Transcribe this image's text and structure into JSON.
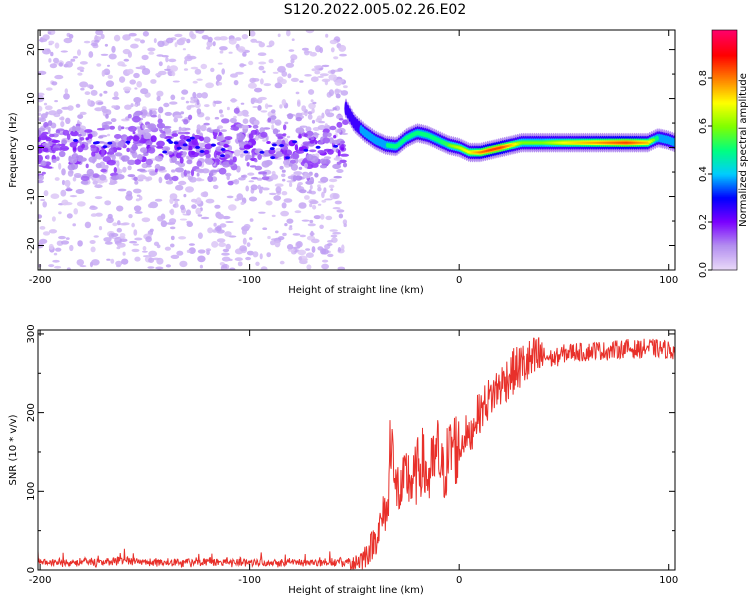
{
  "title": "S120.2022.005.02.26.E02",
  "chart_data": [
    {
      "type": "heatmap",
      "title": "",
      "xlabel": "Height of straight line (km)",
      "ylabel": "Frequency (Hz)",
      "xlim": [
        -201,
        103
      ],
      "ylim": [
        -25,
        24
      ],
      "xticks": [
        -200,
        -100,
        0,
        100
      ],
      "yticks": [
        -20,
        -10,
        0,
        10,
        20
      ],
      "colorbar": {
        "label": "Normalized spectral amplitude",
        "range": [
          0,
          1
        ],
        "ticks": [
          0.0,
          0.2,
          0.4,
          0.6,
          0.8
        ],
        "colors": [
          "#e8d8f8",
          "#b38ef0",
          "#7a00ff",
          "#0000ff",
          "#00ccff",
          "#00ff80",
          "#80ff00",
          "#ffff00",
          "#ff8000",
          "#ff0000",
          "#ff0066"
        ]
      },
      "noise_region": {
        "x_range": [
          -201,
          -54
        ],
        "freq_range": [
          -25,
          24
        ],
        "core_amplitude": 0.15
      },
      "signal_ridge": {
        "x": [
          -54,
          -50,
          -45,
          -40,
          -35,
          -30,
          -25,
          -20,
          -15,
          -10,
          -5,
          0,
          5,
          10,
          15,
          20,
          25,
          30,
          40,
          50,
          60,
          70,
          80,
          90,
          95,
          100,
          103
        ],
        "freq": [
          8,
          5,
          3,
          1.5,
          0.5,
          0.2,
          2,
          3,
          2.5,
          1.5,
          0.5,
          0,
          -1,
          -1,
          -0.5,
          0,
          0.5,
          1,
          1,
          1,
          1,
          1,
          1,
          1,
          2,
          1.5,
          1
        ],
        "amplitude": [
          0.35,
          0.35,
          0.4,
          0.45,
          0.5,
          0.5,
          0.55,
          0.55,
          0.55,
          0.55,
          0.6,
          0.65,
          0.7,
          0.8,
          0.85,
          0.85,
          0.75,
          0.6,
          0.6,
          0.7,
          0.75,
          0.8,
          0.85,
          0.75,
          0.5,
          0.45,
          0.4
        ]
      }
    },
    {
      "type": "line",
      "title": "",
      "xlabel": "Height of straight line (km)",
      "ylabel": "SNR (10 * v/v)",
      "xlim": [
        -201,
        103
      ],
      "ylim": [
        0,
        305
      ],
      "xticks": [
        -200,
        -100,
        0,
        100
      ],
      "yticks": [
        0,
        100,
        200,
        300
      ],
      "color": "#e8302a",
      "series": [
        {
          "x": [
            -201,
            -190,
            -180,
            -170,
            -160,
            -150,
            -140,
            -130,
            -120,
            -110,
            -100,
            -90,
            -80,
            -70,
            -60,
            -50,
            -46,
            -43,
            -40,
            -37,
            -35,
            -34,
            -33,
            -32,
            -31,
            -30,
            -28,
            -25,
            -22,
            -20,
            -18,
            -15,
            -12,
            -10,
            -8,
            -5,
            -3,
            0,
            3,
            5,
            8,
            10,
            12,
            15,
            18,
            20,
            25,
            30,
            35,
            40,
            45,
            50,
            55,
            60,
            65,
            70,
            75,
            80,
            85,
            90,
            95,
            100,
            103
          ],
          "y": [
            10,
            10,
            10,
            10,
            11,
            10,
            10,
            10,
            10,
            10,
            10,
            10,
            10,
            10,
            10,
            10,
            15,
            25,
            40,
            60,
            80,
            70,
            160,
            205,
            90,
            110,
            95,
            120,
            110,
            125,
            140,
            115,
            135,
            150,
            120,
            145,
            160,
            150,
            175,
            165,
            195,
            200,
            210,
            220,
            230,
            235,
            250,
            260,
            265,
            272,
            268,
            275,
            278,
            276,
            280,
            278,
            280,
            282,
            280,
            283,
            281,
            280,
            278
          ]
        }
      ]
    }
  ]
}
